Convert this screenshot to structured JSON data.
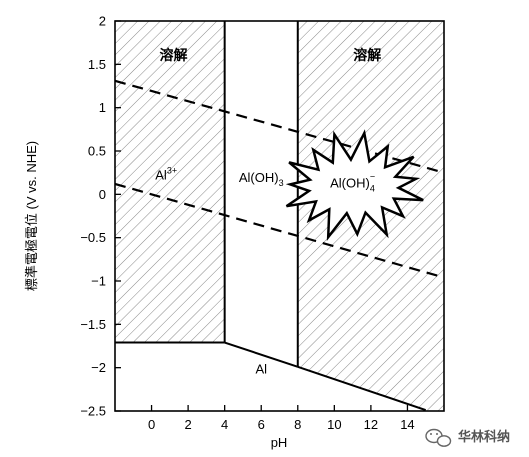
{
  "chart_data": {
    "type": "line",
    "title": "",
    "xlabel": "pH",
    "ylabel": "標準電極電位 (V vs. NHE)",
    "xlim": [
      -2,
      16
    ],
    "ylim": [
      -2.5,
      2
    ],
    "x_ticks": [
      0,
      2,
      4,
      6,
      8,
      10,
      12,
      14
    ],
    "y_ticks": [
      2,
      1.5,
      1,
      0.5,
      0,
      -0.5,
      -1,
      -1.5,
      -2,
      -2.5
    ],
    "x_tick_labels": [
      "0",
      "2",
      "4",
      "6",
      "8",
      "10",
      "12",
      "14"
    ],
    "y_tick_labels": [
      "2",
      "1.5",
      "1",
      "0.5",
      "0",
      "−0.5",
      "−1",
      "−1.5",
      "−2",
      "−2.5"
    ],
    "grid": false,
    "boundaries": [
      {
        "name": "Al3+/Al(OH)3",
        "x": [
          4,
          4
        ],
        "y": [
          2,
          -1.71
        ]
      },
      {
        "name": "Al(OH)3/Al(OH)4-",
        "x": [
          8,
          8
        ],
        "y": [
          2,
          -1.99
        ]
      },
      {
        "name": "Al3+/Al",
        "x": [
          -2,
          4
        ],
        "y": [
          -1.71,
          -1.71
        ]
      },
      {
        "name": "Al(OH)3/Al",
        "x": [
          4,
          8
        ],
        "y": [
          -1.71,
          -1.99
        ]
      },
      {
        "name": "Al(OH)4-/Al",
        "x": [
          8,
          15
        ],
        "y": [
          -1.99,
          -2.49
        ]
      }
    ],
    "water_lines": [
      {
        "name": "O2/H2O",
        "x": [
          -2,
          16
        ],
        "y": [
          1.31,
          0.25
        ],
        "style": "dashed"
      },
      {
        "name": "H+/H2",
        "x": [
          -2,
          16
        ],
        "y": [
          0.12,
          -0.96
        ],
        "style": "dashed"
      }
    ],
    "regions": [
      {
        "label": "溶解",
        "x": 1.2,
        "y": 1.55,
        "bold": true
      },
      {
        "label": "溶解",
        "x": 11.8,
        "y": 1.55,
        "bold": true
      },
      {
        "label_main": "Al",
        "label_sup": "3+",
        "x": 0.8,
        "y": 0.17
      },
      {
        "label_main": "Al(OH)",
        "label_sub": "3",
        "x": 6.0,
        "y": 0.14
      },
      {
        "label_main": "Al(OH)",
        "label_sub": "4",
        "label_sup": "−",
        "x": 11.0,
        "y": 0.08
      },
      {
        "label_main": "Al",
        "x": 6.0,
        "y": -2.07
      }
    ],
    "corrosion_regions": [
      {
        "name": "Al3+ dissolution",
        "polygon": [
          [
            -2,
            2
          ],
          [
            4,
            2
          ],
          [
            4,
            -1.71
          ],
          [
            -2,
            -1.71
          ]
        ]
      },
      {
        "name": "Al(OH)4- dissolution",
        "polygon": [
          [
            8,
            2
          ],
          [
            16,
            2
          ],
          [
            16,
            -2.5
          ],
          [
            15,
            -2.49
          ],
          [
            8,
            -1.99
          ]
        ]
      }
    ],
    "colors": {
      "line": "#000000",
      "hatch": "#777777",
      "background": "#ffffff"
    }
  },
  "watermark": {
    "text": "华林科纳",
    "icon": "wechat-icon"
  }
}
